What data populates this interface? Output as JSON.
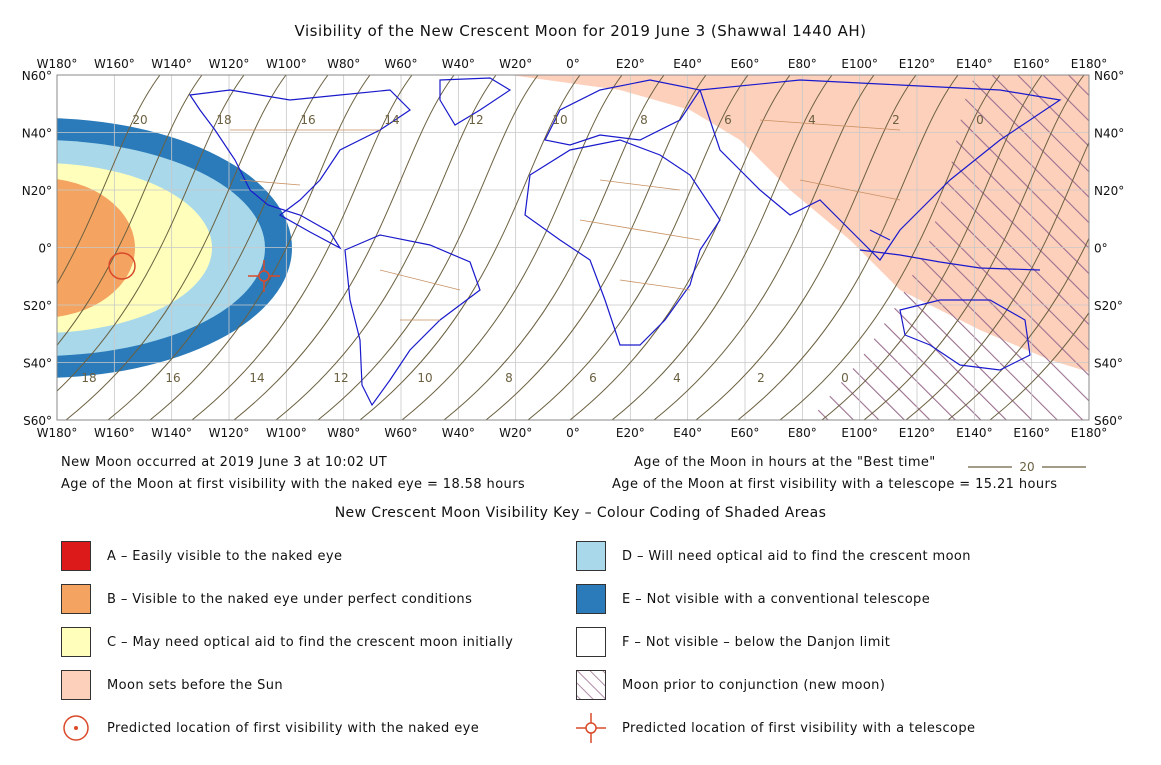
{
  "title": "Visibility of the New Crescent Moon for 2019 June 3 (Shawwal 1440 AH)",
  "map": {
    "lon_labels": [
      "W180°",
      "W160°",
      "W140°",
      "W120°",
      "W100°",
      "W80°",
      "W60°",
      "W40°",
      "W20°",
      "0°",
      "E20°",
      "E40°",
      "E60°",
      "E80°",
      "E100°",
      "E120°",
      "E140°",
      "E160°",
      "E180°"
    ],
    "lat_labels": [
      "N60°",
      "N40°",
      "N20°",
      "0°",
      "S20°",
      "S40°",
      "S60°"
    ],
    "age_labels_top": [
      "20",
      "18",
      "16",
      "14",
      "12",
      "10",
      "8",
      "6",
      "4",
      "2",
      "0"
    ],
    "age_labels_bottom": [
      "18",
      "16",
      "14",
      "12",
      "10",
      "8",
      "6",
      "4",
      "2",
      "0"
    ],
    "colors": {
      "zone_a": "#dd1a1a",
      "zone_b": "#f4a460",
      "zone_c": "#ffffbb",
      "zone_d": "#a8d8ea",
      "zone_e": "#2b7bba",
      "zone_f": "#ffffff",
      "moonset": "#fdd0bc",
      "hatch": "#9b6f8e",
      "coast": "#1a1acc",
      "border": "#c89060",
      "age_line": "#6b6040",
      "grid": "#c8c8c8",
      "marker": "#d94a2a"
    }
  },
  "info": {
    "new_moon": "New Moon occurred at 2019 June 3 at 10:02 UT",
    "naked_eye_age": "Age of the Moon at first visibility with the naked eye = 18.58 hours",
    "best_time_label": "Age of the Moon in hours at the \"Best time\"",
    "best_time_sample": "20",
    "telescope_age": "Age of the Moon at first visibility with a telescope = 15.21 hours"
  },
  "key": {
    "title": "New Crescent Moon Visibility Key – Colour Coding of Shaded Areas",
    "a": "A – Easily visible to the naked eye",
    "b": "B – Visible to the naked eye under perfect conditions",
    "c": "C – May need optical aid to find the crescent moon initially",
    "moonset": "Moon sets before the Sun",
    "naked_marker": "Predicted location of first visibility with the naked eye",
    "d": "D – Will need optical aid to find the crescent moon",
    "e": "E – Not visible with a conventional telescope",
    "f": "F – Not visible – below the Danjon limit",
    "conjunction": "Moon prior to conjunction (new moon)",
    "telescope_marker": "Predicted location of first visibility with a telescope"
  }
}
